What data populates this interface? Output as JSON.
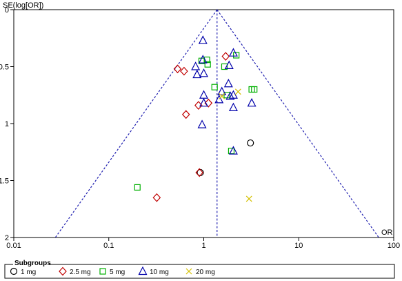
{
  "chart_data": {
    "type": "scatter",
    "subtype": "funnel",
    "title": "",
    "xlabel": "OR",
    "ylabel": "SE(log[OR])",
    "x_scale": "log",
    "xlim": [
      0.01,
      100
    ],
    "ylim": [
      0,
      2
    ],
    "y_inverted": true,
    "x_ticks": [
      "0.01",
      "0.1",
      "1",
      "10",
      "100"
    ],
    "y_ticks": [
      "0",
      "0.5",
      "1",
      "1.5",
      "2"
    ],
    "pooled_or": 1.38,
    "grid": false,
    "legend_position": "bottom",
    "legend_title": "Subgroups",
    "series": [
      {
        "name": "1 mg",
        "marker": "circle",
        "color": "#000000",
        "points": [
          [
            3.1,
            1.17
          ],
          [
            0.92,
            1.43
          ]
        ]
      },
      {
        "name": "2.5 mg",
        "marker": "diamond",
        "color": "#c00000",
        "points": [
          [
            1.7,
            0.41
          ],
          [
            0.53,
            0.52
          ],
          [
            0.62,
            0.54
          ],
          [
            0.88,
            0.84
          ],
          [
            1.12,
            0.82
          ],
          [
            0.65,
            0.92
          ],
          [
            0.9,
            1.43
          ],
          [
            0.32,
            1.65
          ]
        ]
      },
      {
        "name": "5 mg",
        "marker": "square",
        "color": "#00b000",
        "points": [
          [
            2.2,
            0.4
          ],
          [
            0.95,
            0.45
          ],
          [
            1.08,
            0.44
          ],
          [
            1.1,
            0.48
          ],
          [
            1.65,
            0.5
          ],
          [
            1.3,
            0.68
          ],
          [
            3.2,
            0.7
          ],
          [
            3.4,
            0.7
          ],
          [
            1.75,
            0.75
          ],
          [
            1.95,
            1.24
          ],
          [
            0.2,
            1.56
          ]
        ]
      },
      {
        "name": "10 mg",
        "marker": "triangle",
        "color": "#0000aa",
        "points": [
          [
            0.98,
            0.27
          ],
          [
            2.05,
            0.38
          ],
          [
            1.85,
            0.49
          ],
          [
            0.98,
            0.44
          ],
          [
            0.82,
            0.5
          ],
          [
            0.85,
            0.57
          ],
          [
            1.0,
            0.56
          ],
          [
            1.0,
            0.75
          ],
          [
            1.55,
            0.72
          ],
          [
            1.82,
            0.65
          ],
          [
            1.45,
            0.79
          ],
          [
            1.9,
            0.76
          ],
          [
            2.05,
            0.75
          ],
          [
            1.0,
            0.82
          ],
          [
            3.2,
            0.82
          ],
          [
            2.05,
            0.86
          ],
          [
            0.96,
            1.01
          ],
          [
            2.05,
            1.24
          ]
        ]
      },
      {
        "name": "20 mg",
        "marker": "x",
        "color": "#d4c000",
        "points": [
          [
            2.3,
            0.72
          ],
          [
            1.55,
            0.76
          ],
          [
            3.0,
            1.66
          ]
        ]
      }
    ]
  }
}
